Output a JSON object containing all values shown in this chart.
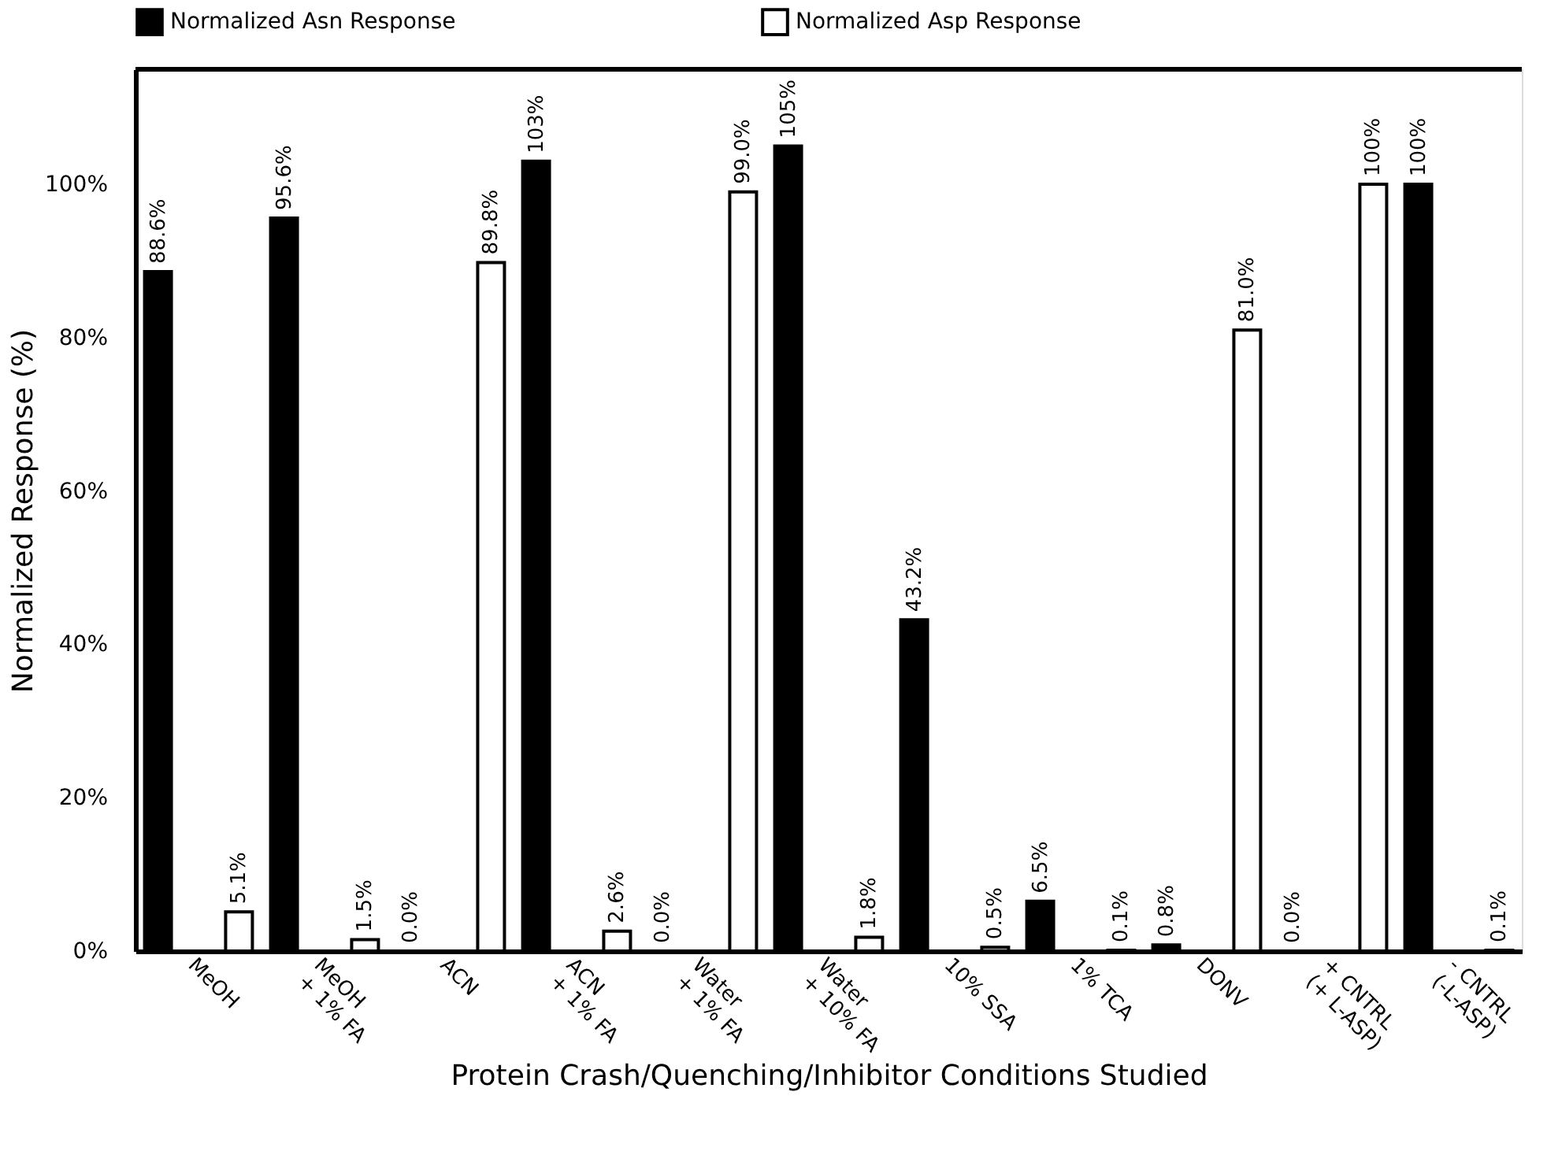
{
  "chart_data": {
    "type": "bar",
    "xlabel": "Protein Crash/Quenching/Inhibitor Conditions Studied",
    "ylabel": "Normalized Response (%)",
    "categories": [
      "MeOH",
      "MeOH\n+ 1% FA",
      "ACN",
      "ACN\n+ 1% FA",
      "Water\n+ 1% FA",
      "Water\n+ 10% FA",
      "10% SSA",
      "1% TCA",
      "DONV",
      "+ CNTRL\n(+ L-ASP)",
      "- CNTRL\n(-L-ASP)"
    ],
    "series": [
      {
        "name": "Normalized Asn Response",
        "color": "#000000",
        "values": [
          88.6,
          95.6,
          0.0,
          103,
          0.0,
          105,
          43.2,
          6.5,
          0.8,
          0.0,
          100
        ],
        "value_labels": [
          "88.6%",
          "95.6%",
          "0.0%",
          "103%",
          "0.0%",
          "105%",
          "43.2%",
          "6.5%",
          "0.8%",
          "0.0%",
          "100%"
        ]
      },
      {
        "name": "Normalized Asp Response",
        "color": "#ffffff",
        "values": [
          5.1,
          1.5,
          89.8,
          2.6,
          99.0,
          1.8,
          0.5,
          0.1,
          81.0,
          100,
          0.1
        ],
        "value_labels": [
          "5.1%",
          "1.5%",
          "89.8%",
          "2.6%",
          "99.0%",
          "1.8%",
          "0.5%",
          "0.1%",
          "81.0%",
          "100%",
          "0.1%"
        ]
      }
    ],
    "ylim": [
      0,
      115
    ],
    "yticks": [
      {
        "value": 0,
        "label": "0%"
      },
      {
        "value": 20,
        "label": "20%"
      },
      {
        "value": 40,
        "label": "40%"
      },
      {
        "value": 60,
        "label": "60%"
      },
      {
        "value": 80,
        "label": "80%"
      },
      {
        "value": 100,
        "label": "100%"
      }
    ],
    "grid": false,
    "legend": "top"
  }
}
